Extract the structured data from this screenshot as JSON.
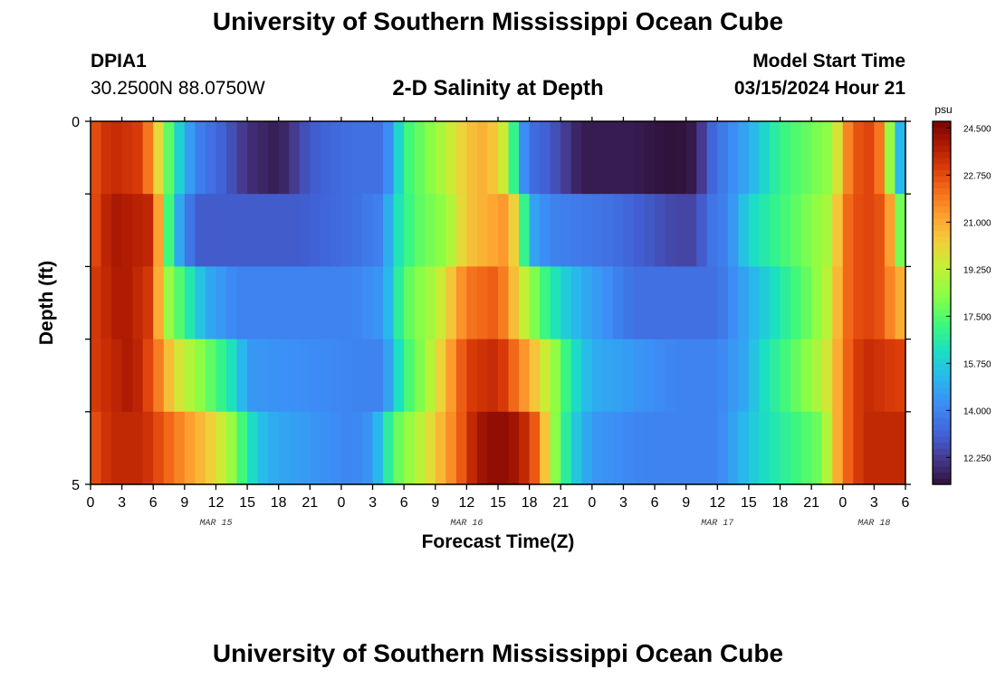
{
  "page": {
    "title": "University of Southern Mississippi Ocean Cube",
    "footer_title": "University of Southern Mississippi Ocean Cube"
  },
  "header": {
    "station": "DPIA1",
    "coords": "30.2500N  88.0750W",
    "plot_title": "2-D Salinity at Depth",
    "start_label": "Model Start Time",
    "start_value": "03/15/2024 Hour 21"
  },
  "chart_data": {
    "type": "heatmap",
    "title": "2-D Salinity at Depth",
    "xlabel": "Forecast Time(Z)",
    "ylabel": "Depth (ft)",
    "xlim": [
      0,
      78
    ],
    "ylim": [
      0,
      5
    ],
    "y_ticks_labeled": [
      0,
      5
    ],
    "x_tick_labels": [
      "0",
      "3",
      "6",
      "9",
      "12",
      "15",
      "18",
      "21",
      "0",
      "3",
      "6",
      "9",
      "12",
      "15",
      "18",
      "21",
      "0",
      "3",
      "6",
      "9",
      "12",
      "15",
      "18",
      "21",
      "0",
      "3",
      "6"
    ],
    "date_labels": [
      {
        "label": "MAR 15",
        "hour": 12
      },
      {
        "label": "MAR 16",
        "hour": 36
      },
      {
        "label": "MAR 17",
        "hour": 60
      },
      {
        "label": "MAR 18",
        "hour": 75
      }
    ],
    "depth_layers": [
      0.5,
      1.5,
      2.5,
      3.5,
      4.5
    ],
    "units": "psu",
    "colorbar_ticks": [
      "12.250",
      "14.000",
      "15.750",
      "17.500",
      "19.250",
      "21.000",
      "22.750",
      "24.500"
    ],
    "color_range": [
      11.25,
      24.75
    ],
    "salinity_keyframes": [
      {
        "depth": 0.5,
        "points": [
          [
            0,
            22.5
          ],
          [
            2,
            23.5
          ],
          [
            5,
            23
          ],
          [
            6.5,
            20
          ],
          [
            8,
            16.5
          ],
          [
            10,
            14
          ],
          [
            13,
            13
          ],
          [
            15,
            12
          ],
          [
            18,
            11.5
          ],
          [
            21,
            13
          ],
          [
            25,
            13.5
          ],
          [
            28,
            13.5
          ],
          [
            29,
            15
          ],
          [
            30,
            17
          ],
          [
            33,
            18.5
          ],
          [
            36,
            20.5
          ],
          [
            38,
            21
          ],
          [
            40,
            19
          ],
          [
            41,
            15
          ],
          [
            42,
            13.5
          ],
          [
            44,
            13
          ],
          [
            47,
            11.5
          ],
          [
            52,
            11.5
          ],
          [
            56,
            11.2
          ],
          [
            58,
            11.5
          ],
          [
            59,
            13
          ],
          [
            61,
            14
          ],
          [
            63,
            15
          ],
          [
            66,
            17
          ],
          [
            71,
            18.5
          ],
          [
            72,
            21
          ],
          [
            73,
            22.5
          ],
          [
            75,
            23
          ],
          [
            76,
            21
          ],
          [
            77,
            16
          ],
          [
            78,
            14.5
          ]
        ]
      },
      {
        "depth": 1.5,
        "points": [
          [
            0,
            22.5
          ],
          [
            2,
            24
          ],
          [
            6,
            23.5
          ],
          [
            7,
            19
          ],
          [
            8,
            15.5
          ],
          [
            10,
            13
          ],
          [
            20,
            13
          ],
          [
            25,
            13.5
          ],
          [
            28,
            14
          ],
          [
            29,
            16
          ],
          [
            31,
            17.5
          ],
          [
            34,
            18.5
          ],
          [
            36,
            20.5
          ],
          [
            40,
            21.5
          ],
          [
            41,
            19
          ],
          [
            42,
            15
          ],
          [
            44,
            14
          ],
          [
            50,
            13.5
          ],
          [
            56,
            12.5
          ],
          [
            58,
            12.5
          ],
          [
            59,
            13.5
          ],
          [
            61,
            14
          ],
          [
            63,
            16
          ],
          [
            67,
            17.5
          ],
          [
            71,
            19
          ],
          [
            72,
            22
          ],
          [
            74,
            23
          ],
          [
            76,
            22.5
          ],
          [
            77,
            20
          ],
          [
            78,
            16
          ]
        ]
      },
      {
        "depth": 2.5,
        "points": [
          [
            0,
            23
          ],
          [
            3,
            24
          ],
          [
            6,
            23
          ],
          [
            7,
            19
          ],
          [
            9,
            17
          ],
          [
            11,
            15
          ],
          [
            14,
            14
          ],
          [
            25,
            14
          ],
          [
            28,
            14.5
          ],
          [
            29,
            16
          ],
          [
            30,
            17.5
          ],
          [
            33,
            19
          ],
          [
            36,
            22
          ],
          [
            39,
            22.5
          ],
          [
            41,
            20
          ],
          [
            43,
            17.5
          ],
          [
            45,
            16
          ],
          [
            47,
            15
          ],
          [
            52,
            13.5
          ],
          [
            60,
            13.5
          ],
          [
            63,
            15
          ],
          [
            66,
            16.5
          ],
          [
            69,
            18
          ],
          [
            71,
            19.5
          ],
          [
            72,
            22
          ],
          [
            74,
            23
          ],
          [
            76,
            22.5
          ],
          [
            77,
            21
          ]
        ]
      },
      {
        "depth": 3.5,
        "points": [
          [
            0,
            23
          ],
          [
            4,
            24
          ],
          [
            6,
            22.5
          ],
          [
            8,
            20
          ],
          [
            11,
            18
          ],
          [
            14,
            16
          ],
          [
            15,
            14.5
          ],
          [
            26,
            14
          ],
          [
            28,
            14
          ],
          [
            29,
            15.5
          ],
          [
            30,
            17
          ],
          [
            32,
            18.5
          ],
          [
            36,
            23
          ],
          [
            39,
            23.5
          ],
          [
            42,
            21
          ],
          [
            44,
            19
          ],
          [
            46,
            16.5
          ],
          [
            48,
            15
          ],
          [
            56,
            14
          ],
          [
            60,
            14
          ],
          [
            63,
            15
          ],
          [
            64,
            16
          ],
          [
            66,
            17
          ],
          [
            69,
            18.5
          ],
          [
            71,
            20
          ],
          [
            72,
            22
          ],
          [
            74,
            23.5
          ],
          [
            77,
            23
          ]
        ]
      },
      {
        "depth": 4.5,
        "points": [
          [
            0,
            22.5
          ],
          [
            2,
            23.5
          ],
          [
            5,
            23.5
          ],
          [
            8,
            22
          ],
          [
            12,
            20
          ],
          [
            14,
            18
          ],
          [
            15,
            16.5
          ],
          [
            17,
            15
          ],
          [
            25,
            14
          ],
          [
            27,
            14.5
          ],
          [
            28,
            16
          ],
          [
            29,
            17.5
          ],
          [
            32,
            19.5
          ],
          [
            35,
            22
          ],
          [
            37,
            24
          ],
          [
            39,
            24.5
          ],
          [
            41,
            24
          ],
          [
            43,
            22
          ],
          [
            44,
            19
          ],
          [
            46,
            16
          ],
          [
            48,
            14.5
          ],
          [
            53,
            14
          ],
          [
            60,
            14
          ],
          [
            62,
            15
          ],
          [
            64,
            16
          ],
          [
            67,
            17
          ],
          [
            70,
            18
          ],
          [
            71,
            20
          ],
          [
            72,
            22
          ],
          [
            74,
            23.5
          ],
          [
            77,
            23.5
          ]
        ]
      }
    ]
  }
}
